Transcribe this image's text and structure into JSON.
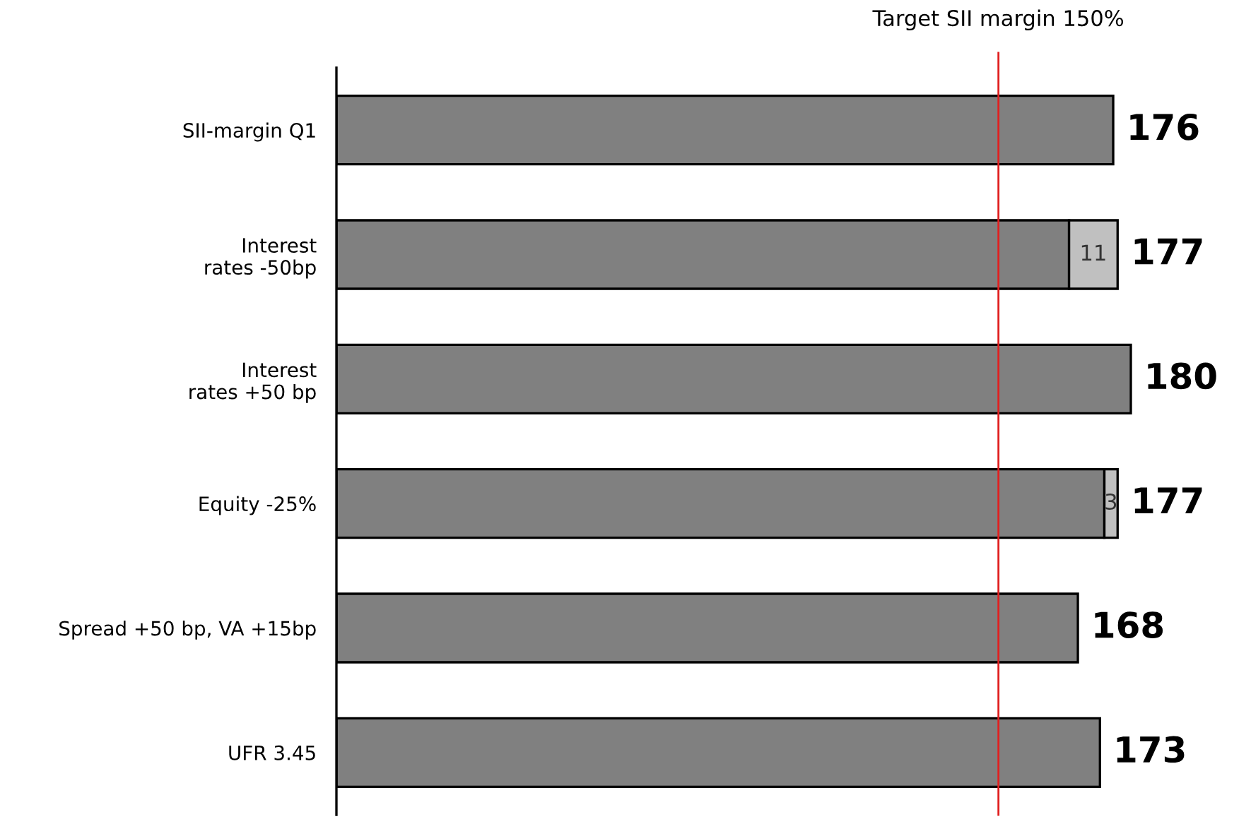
{
  "chart_data": {
    "type": "bar",
    "orientation": "horizontal",
    "stacked": true,
    "categories": [
      "SII-margin Q1",
      "Interest\nrates -50bp",
      "Interest\nrates +50 bp",
      "Equity -25%",
      "Spread +50 bp, VA +15bp",
      "UFR 3.45"
    ],
    "series": [
      {
        "color": "#808080",
        "values": [
          176,
          166,
          180,
          174,
          168,
          173
        ]
      },
      {
        "color": "#c0c0c0",
        "values": [
          null,
          11,
          null,
          3,
          null,
          null
        ],
        "value_labels": [
          null,
          "11",
          null,
          "3",
          null,
          null
        ]
      }
    ],
    "totals": [
      "176",
      "177",
      "180",
      "177",
      "168",
      "173"
    ],
    "tick_labels": "y",
    "grid": false,
    "legend": false,
    "ref_lines": [
      {
        "axis": "x",
        "value": 150,
        "label": "Target SII margin 150%",
        "color": "#e02020"
      }
    ]
  }
}
